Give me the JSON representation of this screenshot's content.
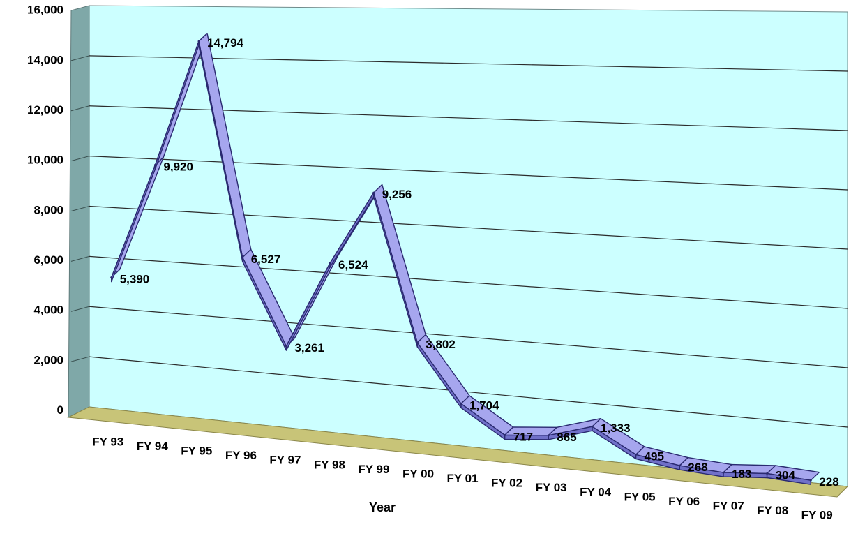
{
  "chart_data": {
    "type": "line",
    "title": "",
    "xlabel": "Year",
    "ylabel": "",
    "ylim": [
      0,
      16000
    ],
    "y_ticks": [
      "0",
      "2,000",
      "4,000",
      "6,000",
      "8,000",
      "10,000",
      "12,000",
      "14,000",
      "16,000"
    ],
    "grid": true,
    "legend": "none",
    "three_d": true,
    "categories": [
      "FY 93",
      "FY 94",
      "FY 95",
      "FY 96",
      "FY 97",
      "FY 98",
      "FY 99",
      "FY 00",
      "FY 01",
      "FY 02",
      "FY 03",
      "FY 04",
      "FY 05",
      "FY 06",
      "FY 07",
      "FY 08",
      "FY 09"
    ],
    "series": [
      {
        "values": [
          5390,
          9920,
          14794,
          6527,
          3261,
          6524,
          9256,
          3802,
          1704,
          717,
          865,
          1333,
          495,
          268,
          183,
          304,
          228
        ],
        "labels": [
          "5,390",
          "9,920",
          "14,794",
          "6,527",
          "3,261",
          "6,524",
          "9,256",
          "3,802",
          "1,704",
          "717",
          "865",
          "1,333",
          "495",
          "268",
          "183",
          "304",
          "228"
        ]
      }
    ],
    "colors": {
      "back_wall": "#ccffff",
      "side_wall": "#7fa8a8",
      "floor": "#c8c478",
      "ribbon_top": "#a6a6ee",
      "ribbon_front": "#7070c8",
      "ribbon_edge": "#2a2a70"
    }
  }
}
